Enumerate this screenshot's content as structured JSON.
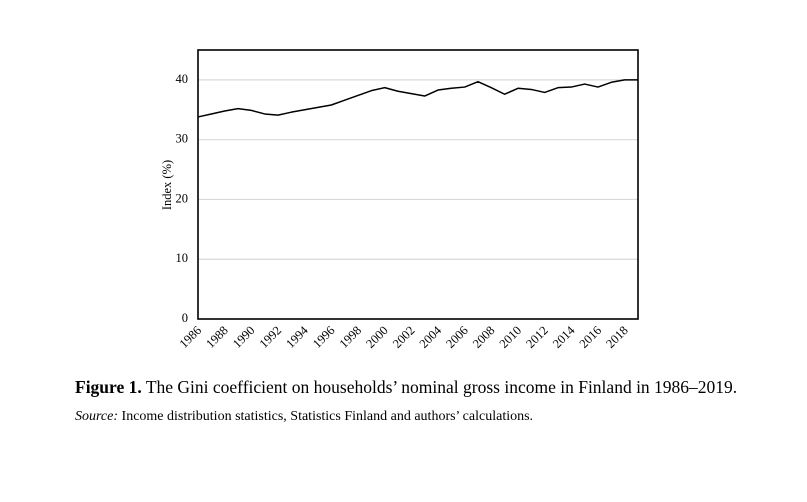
{
  "chart_data": {
    "type": "line",
    "title": "",
    "xlabel": "",
    "ylabel": "Index (%)",
    "ylim": [
      0,
      45
    ],
    "xlim": [
      1986,
      2019
    ],
    "grid": true,
    "legend": "none",
    "yticks": [
      0,
      10,
      20,
      30,
      40
    ],
    "ytick_labels": [
      "0",
      "10",
      "20",
      "30",
      "40"
    ],
    "xtick_labels": [
      "1986",
      "1988",
      "1990",
      "1992",
      "1994",
      "1996",
      "1998",
      "2000",
      "2002",
      "2004",
      "2006",
      "2008",
      "2010",
      "2012",
      "2014",
      "2016",
      "2018"
    ],
    "x": [
      1986,
      1987,
      1988,
      1989,
      1990,
      1991,
      1992,
      1993,
      1994,
      1995,
      1996,
      1997,
      1998,
      1999,
      2000,
      2001,
      2002,
      2003,
      2004,
      2005,
      2006,
      2007,
      2008,
      2009,
      2010,
      2011,
      2012,
      2013,
      2014,
      2015,
      2016,
      2017,
      2018,
      2019
    ],
    "series": [
      {
        "name": "Gini coefficient",
        "color": "#000000",
        "values": [
          33.8,
          34.3,
          34.8,
          35.2,
          34.9,
          34.3,
          34.1,
          34.6,
          35.0,
          35.4,
          35.8,
          36.6,
          37.4,
          38.2,
          38.7,
          38.1,
          37.7,
          37.3,
          38.3,
          38.6,
          38.8,
          39.7,
          38.7,
          37.6,
          38.6,
          38.4,
          37.9,
          38.7,
          38.8,
          39.3,
          38.8,
          39.6,
          40.0,
          40.0
        ]
      }
    ],
    "gridline_color": "#d9d9d9"
  },
  "caption": {
    "label": "Figure 1.",
    "text": " The Gini coefficient on households’ nominal gross income in Finland in 1986–2019."
  },
  "source": {
    "label": "Source:",
    "text": " Income distribution statistics, Statistics Finland and authors’ calculations."
  }
}
